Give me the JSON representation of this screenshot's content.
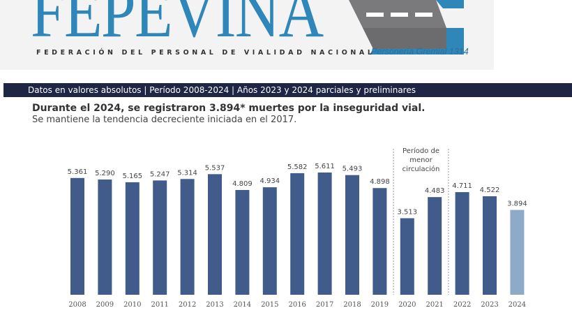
{
  "logo": {
    "wordmark": "FEPEVINA",
    "subtitle": "FEDERACIÓN DEL PERSONAL DE VIALIDAD NACIONAL",
    "tagline": "Personería Gremial 1314"
  },
  "banner": "Datos en valores absolutos | Período 2008-2024 | Años 2023 y 2024 parciales y preliminares",
  "headline": "Durante el 2024, se registraron 3.894* muertes por la inseguridad vial.",
  "subheadline": "Se mantiene la tendencia decreciente iniciada en el 2017.",
  "chart_data": {
    "type": "bar",
    "categories": [
      "2008",
      "2009",
      "2010",
      "2011",
      "2012",
      "2013",
      "2014",
      "2015",
      "2016",
      "2017",
      "2018",
      "2019",
      "2020",
      "2021",
      "2022",
      "2023",
      "2024"
    ],
    "values": [
      5361,
      5290,
      5165,
      5247,
      5314,
      5537,
      4809,
      4934,
      5582,
      5611,
      5493,
      4898,
      3513,
      4483,
      4711,
      4522,
      3894
    ],
    "value_labels": [
      "5.361",
      "5.290",
      "5.165",
      "5.247",
      "5.314",
      "5.537",
      "4.809",
      "4.934",
      "5.582",
      "5.611",
      "5.493",
      "4.898",
      "3.513",
      "4.483",
      "4.711",
      "4.522",
      "3.894"
    ],
    "ylim": [
      0,
      5611
    ],
    "grid": false,
    "colors": {
      "bar": "#415b8a",
      "highlight_2024": "#8fa9c9"
    },
    "annotation": {
      "text": [
        "Período de",
        "menor",
        "circulación"
      ],
      "range": [
        "2020",
        "2021"
      ]
    }
  }
}
